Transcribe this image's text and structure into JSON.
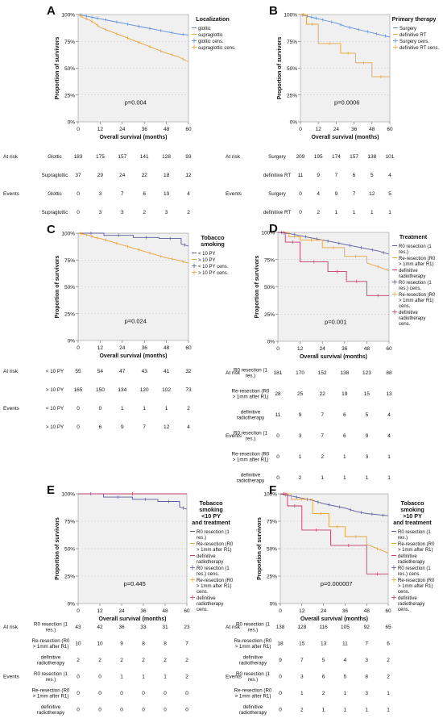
{
  "panels": [
    {
      "letter": "A",
      "legend_title": [
        "Localization"
      ],
      "legend_entries": [
        "glottic",
        "supraglottic",
        "glottic cens.",
        "supraglottic cens."
      ],
      "pvalue": "p=0.004",
      "xlabel": "Overall survival (months)",
      "ylabel": "Proportion of survivors",
      "table": [
        {
          "section": "At risk",
          "label": "Glottic",
          "values": [
            "183",
            "175",
            "157",
            "141",
            "128",
            "93"
          ]
        },
        {
          "section": "",
          "label": "Supraglottic",
          "values": [
            "37",
            "29",
            "24",
            "22",
            "18",
            "12"
          ]
        },
        {
          "section": "Events",
          "label": "Glottic",
          "values": [
            "0",
            "3",
            "7",
            "6",
            "10",
            "4"
          ]
        },
        {
          "section": "",
          "label": "Supraglottic",
          "values": [
            "0",
            "3",
            "3",
            "2",
            "3",
            "2"
          ]
        }
      ]
    },
    {
      "letter": "B",
      "legend_title": [
        "Primary therapy"
      ],
      "legend_entries": [
        "Surgery",
        "definitive RT",
        "Surgery cens.",
        "definitive RT cens."
      ],
      "pvalue": "p=0.0006",
      "xlabel": "Overall survival (months)",
      "ylabel": "Proportion of survivors",
      "table": [
        {
          "section": "At risk",
          "label": "Surgery",
          "values": [
            "209",
            "195",
            "174",
            "157",
            "138",
            "101"
          ]
        },
        {
          "section": "",
          "label": "definitive RT",
          "values": [
            "11",
            "9",
            "7",
            "6",
            "5",
            "4"
          ]
        },
        {
          "section": "Events",
          "label": "Surgery",
          "values": [
            "0",
            "4",
            "9",
            "7",
            "12",
            "5"
          ]
        },
        {
          "section": "",
          "label": "definitive RT",
          "values": [
            "0",
            "2",
            "1",
            "1",
            "1",
            "1"
          ]
        }
      ]
    },
    {
      "letter": "C",
      "legend_title": [
        "Tobacco",
        "smoking"
      ],
      "legend_entries": [
        "< 10 PY",
        "> 10 PY",
        "< 10 PY cens.",
        "> 10 PY cens."
      ],
      "pvalue": "p=0.024",
      "xlabel": "Overall survival (months)",
      "ylabel": "Proportion of survivors",
      "table": [
        {
          "section": "At risk",
          "label": "< 10 PY",
          "values": [
            "55",
            "54",
            "47",
            "43",
            "41",
            "32"
          ]
        },
        {
          "section": "",
          "label": "> 10 PY",
          "values": [
            "165",
            "150",
            "134",
            "120",
            "102",
            "73"
          ]
        },
        {
          "section": "Events",
          "label": "< 10 PY",
          "values": [
            "0",
            "0",
            "1",
            "1",
            "1",
            "2"
          ]
        },
        {
          "section": "",
          "label": "> 10 PY",
          "values": [
            "0",
            "6",
            "9",
            "7",
            "12",
            "4"
          ]
        }
      ]
    },
    {
      "letter": "D",
      "legend_title": [
        "Treatment"
      ],
      "legend_entries": [
        "R0 resection (1 res.)",
        "Re-resection (R0 > 1mm after R1)",
        "definitive radiotherapy",
        "R0 resection (1 res.) cens.",
        "Re-resection (R0 > 1mm after R1) cens.",
        "definitive radiotherapy cens."
      ],
      "pvalue": "p=0.001",
      "xlabel": "Overall survival (months)",
      "ylabel": "Proportion of survivors",
      "table": [
        {
          "section": "At risk",
          "label": "R0 resection (1 res.)",
          "values": [
            "181",
            "170",
            "152",
            "138",
            "123",
            "88"
          ]
        },
        {
          "section": "",
          "label": "Re-resection (R0 > 1mm after R1)",
          "values": [
            "28",
            "25",
            "22",
            "19",
            "15",
            "13"
          ]
        },
        {
          "section": "",
          "label": "definitive radiotherapy",
          "values": [
            "11",
            "9",
            "7",
            "6",
            "5",
            "4"
          ]
        },
        {
          "section": "Events",
          "label": "R0 resection (1 res.)",
          "values": [
            "0",
            "3",
            "7",
            "6",
            "9",
            "4"
          ]
        },
        {
          "section": "",
          "label": "Re-resection (R0 > 1mm after R1)",
          "values": [
            "0",
            "1",
            "2",
            "1",
            "3",
            "1"
          ]
        },
        {
          "section": "",
          "label": "definitive radiotherapy",
          "values": [
            "0",
            "2",
            "1",
            "1",
            "1",
            "1"
          ]
        }
      ]
    },
    {
      "letter": "E",
      "legend_title": [
        "Tobacco",
        "smoking",
        "<10 PY",
        "and treatment"
      ],
      "legend_entries": [
        "R0 resection (1 res.)",
        "Re-resection (R0 > 1mm after R1)",
        "definitive radiotherapy",
        "R0 resection (1 res.) cens.",
        "Re-resection (R0 > 1mm after R1) cens.",
        "definitive radiotherapy cens."
      ],
      "pvalue": "p=0.445",
      "xlabel": "Overall survival (months)",
      "ylabel": "Proportion of survivors",
      "table": [
        {
          "section": "At risk",
          "label": "R0 resection (1 res.)",
          "values": [
            "43",
            "42",
            "36",
            "33",
            "31",
            "23"
          ]
        },
        {
          "section": "",
          "label": "Re-resection (R0 > 1mm after R1)",
          "values": [
            "10",
            "10",
            "9",
            "8",
            "8",
            "7"
          ]
        },
        {
          "section": "",
          "label": "definitive radiotherapy",
          "values": [
            "2",
            "2",
            "2",
            "2",
            "2",
            "2"
          ]
        },
        {
          "section": "Events",
          "label": "R0 resection (1 res.)",
          "values": [
            "0",
            "0",
            "1",
            "1",
            "1",
            "2"
          ]
        },
        {
          "section": "",
          "label": "Re-resection (R0 > 1mm after R1)",
          "values": [
            "0",
            "0",
            "0",
            "0",
            "0",
            "0"
          ]
        },
        {
          "section": "",
          "label": "definitive radiotherapy",
          "values": [
            "0",
            "0",
            "0",
            "0",
            "0",
            "0"
          ]
        }
      ]
    },
    {
      "letter": "F",
      "legend_title": [
        "Tobacco",
        "smoking",
        ">10 PY",
        "and treatment"
      ],
      "legend_entries": [
        "R0 resection (1 res.)",
        "Re-resection (R0 > 1mm after R1)",
        "definitive radiotherapy",
        "R0 resection (1 res.) cens.",
        "Re-resection (R0 > 1mm after R1) cens.",
        "definitive radiotherapy cens."
      ],
      "pvalue": "p=0.000007",
      "xlabel": "Overall survival (months)",
      "ylabel": "Proportion of survivors",
      "table": [
        {
          "section": "At risk",
          "label": "R0 resection (1 res.)",
          "values": [
            "138",
            "128",
            "116",
            "105",
            "92",
            "65"
          ]
        },
        {
          "section": "",
          "label": "Re-resection (R0 > 1mm after R1)",
          "values": [
            "18",
            "15",
            "13",
            "11",
            "7",
            "6"
          ]
        },
        {
          "section": "",
          "label": "definitive radiotherapy",
          "values": [
            "9",
            "7",
            "5",
            "4",
            "3",
            "2"
          ]
        },
        {
          "section": "Events",
          "label": "R0 resection (1 res.)",
          "values": [
            "0",
            "3",
            "6",
            "5",
            "8",
            "2"
          ]
        },
        {
          "section": "",
          "label": "Re-resection (R0 > 1mm after R1)",
          "values": [
            "0",
            "1",
            "2",
            "1",
            "3",
            "1"
          ]
        },
        {
          "section": "",
          "label": "definitive radiotherapy",
          "values": [
            "0",
            "2",
            "1",
            "1",
            "1",
            "1"
          ]
        }
      ]
    }
  ],
  "chart_data": [
    {
      "type": "line",
      "title": "",
      "xlabel": "Overall survival (months)",
      "ylabel": "Proportion of survivors",
      "xlim": [
        0,
        60
      ],
      "ylim": [
        0,
        100
      ],
      "xticks": [
        0,
        12,
        24,
        36,
        48,
        60
      ],
      "yticks": [
        "0%",
        "25%",
        "50%",
        "75%",
        "100%"
      ],
      "grid": true,
      "legend_position": "right",
      "series": [
        {
          "name": "glottic",
          "color": "#5b8fd6",
          "x": [
            0,
            3,
            6,
            9,
            12,
            18,
            24,
            30,
            36,
            42,
            48,
            54,
            60
          ],
          "y": [
            100,
            99,
            98,
            97,
            96,
            94,
            92,
            90,
            88,
            86,
            84,
            82,
            81
          ]
        },
        {
          "name": "supraglottic",
          "color": "#e8a33c",
          "x": [
            0,
            3,
            6,
            9,
            12,
            18,
            24,
            30,
            36,
            42,
            48,
            54,
            60
          ],
          "y": [
            100,
            97,
            95,
            92,
            88,
            84,
            80,
            76,
            72,
            68,
            64,
            61,
            56
          ]
        }
      ]
    },
    {
      "type": "line",
      "title": "",
      "xlabel": "Overall survival (months)",
      "ylabel": "Proportion of survivors",
      "xlim": [
        0,
        60
      ],
      "ylim": [
        0,
        100
      ],
      "xticks": [
        0,
        12,
        24,
        36,
        48,
        60
      ],
      "yticks": [
        "0%",
        "25%",
        "50%",
        "75%",
        "100%"
      ],
      "grid": true,
      "legend_position": "right",
      "series": [
        {
          "name": "Surgery",
          "color": "#5b8fd6",
          "x": [
            0,
            3,
            6,
            9,
            12,
            18,
            24,
            30,
            36,
            42,
            48,
            54,
            60
          ],
          "y": [
            100,
            99,
            98,
            97,
            96,
            94,
            92,
            89,
            87,
            85,
            83,
            81,
            79
          ]
        },
        {
          "name": "definitive RT",
          "color": "#e8a33c",
          "x": [
            0,
            4,
            4,
            12,
            12,
            27,
            27,
            37,
            37,
            48,
            48,
            60
          ],
          "y": [
            100,
            100,
            91,
            91,
            73,
            73,
            64,
            64,
            55,
            55,
            42,
            42
          ]
        }
      ]
    },
    {
      "type": "line",
      "title": "",
      "xlabel": "Overall survival (months)",
      "ylabel": "Proportion of survivors",
      "xlim": [
        0,
        60
      ],
      "ylim": [
        0,
        100
      ],
      "xticks": [
        0,
        12,
        24,
        36,
        48,
        60
      ],
      "yticks": [
        "0%",
        "25%",
        "50%",
        "75%",
        "100%"
      ],
      "grid": true,
      "legend_position": "right",
      "series": [
        {
          "name": "< 10 PY",
          "color": "#5a5a9c",
          "x": [
            0,
            14,
            14,
            30,
            30,
            44,
            44,
            56,
            56,
            60
          ],
          "y": [
            100,
            100,
            98,
            98,
            96,
            96,
            95,
            95,
            90,
            88
          ]
        },
        {
          "name": "> 10 PY",
          "color": "#e8a33c",
          "x": [
            0,
            3,
            6,
            9,
            12,
            18,
            24,
            30,
            36,
            42,
            48,
            54,
            60
          ],
          "y": [
            100,
            99,
            98,
            96,
            95,
            92,
            89,
            86,
            83,
            80,
            77,
            75,
            72
          ]
        }
      ]
    },
    {
      "type": "line",
      "title": "",
      "xlabel": "Overall survival (months)",
      "ylabel": "Proportion of survivors",
      "xlim": [
        0,
        60
      ],
      "ylim": [
        0,
        100
      ],
      "xticks": [
        0,
        12,
        24,
        36,
        48,
        60
      ],
      "yticks": [
        "0%",
        "25%",
        "50%",
        "75%",
        "100%"
      ],
      "grid": true,
      "legend_position": "right",
      "series": [
        {
          "name": "R0 resection (1 res.)",
          "color": "#5a5a9c",
          "x": [
            0,
            6,
            12,
            18,
            24,
            30,
            36,
            42,
            48,
            54,
            60
          ],
          "y": [
            100,
            99,
            97,
            95,
            93,
            91,
            89,
            87,
            85,
            83,
            80
          ]
        },
        {
          "name": "Re-resection (R0 > 1mm after R1)",
          "color": "#e8a33c",
          "x": [
            0,
            6,
            6,
            12,
            12,
            24,
            24,
            36,
            36,
            48,
            48,
            60
          ],
          "y": [
            100,
            100,
            96,
            96,
            93,
            93,
            86,
            86,
            78,
            78,
            72,
            65
          ]
        },
        {
          "name": "definitive radiotherapy",
          "color": "#c43a6b",
          "x": [
            0,
            4,
            4,
            12,
            12,
            27,
            27,
            37,
            37,
            48,
            48,
            60
          ],
          "y": [
            100,
            100,
            91,
            91,
            73,
            73,
            64,
            64,
            55,
            55,
            42,
            42
          ]
        }
      ]
    },
    {
      "type": "line",
      "title": "",
      "xlabel": "Overall survival (months)",
      "ylabel": "Proportion of survivors",
      "xlim": [
        0,
        60
      ],
      "ylim": [
        0,
        100
      ],
      "xticks": [
        0,
        12,
        24,
        36,
        48,
        60
      ],
      "yticks": [
        "0%",
        "25%",
        "50%",
        "75%",
        "100%"
      ],
      "grid": true,
      "legend_position": "right",
      "series": [
        {
          "name": "R0 resection (1 res.)",
          "color": "#5a5a9c",
          "x": [
            0,
            14,
            14,
            30,
            30,
            44,
            44,
            56,
            56,
            60
          ],
          "y": [
            100,
            100,
            97,
            97,
            95,
            95,
            93,
            93,
            88,
            86
          ]
        },
        {
          "name": "Re-resection (R0 > 1mm after R1)",
          "color": "#e8a33c",
          "x": [
            0,
            60
          ],
          "y": [
            100,
            100
          ]
        },
        {
          "name": "definitive radiotherapy",
          "color": "#c43a6b",
          "x": [
            0,
            60
          ],
          "y": [
            100,
            100
          ]
        }
      ]
    },
    {
      "type": "line",
      "title": "",
      "xlabel": "Overall survival (months)",
      "ylabel": "Proportion of survivors",
      "xlim": [
        0,
        60
      ],
      "ylim": [
        0,
        100
      ],
      "xticks": [
        0,
        12,
        24,
        36,
        48,
        60
      ],
      "yticks": [
        "0%",
        "25%",
        "50%",
        "75%",
        "100%"
      ],
      "grid": true,
      "legend_position": "right",
      "series": [
        {
          "name": "R0 resection (1 res.)",
          "color": "#5a5a9c",
          "x": [
            0,
            6,
            12,
            18,
            24,
            30,
            36,
            42,
            48,
            54,
            60
          ],
          "y": [
            100,
            98,
            96,
            94,
            91,
            89,
            87,
            84,
            82,
            81,
            80
          ]
        },
        {
          "name": "Re-resection (R0 > 1mm after R1)",
          "color": "#e8a33c",
          "x": [
            0,
            6,
            6,
            18,
            18,
            27,
            27,
            36,
            36,
            48,
            48,
            60
          ],
          "y": [
            100,
            100,
            95,
            95,
            82,
            82,
            70,
            70,
            61,
            61,
            54,
            46
          ]
        },
        {
          "name": "definitive radiotherapy",
          "color": "#c43a6b",
          "x": [
            0,
            4,
            4,
            12,
            12,
            28,
            28,
            48,
            48,
            60
          ],
          "y": [
            100,
            100,
            89,
            89,
            67,
            67,
            53,
            53,
            27,
            27
          ]
        }
      ]
    }
  ]
}
